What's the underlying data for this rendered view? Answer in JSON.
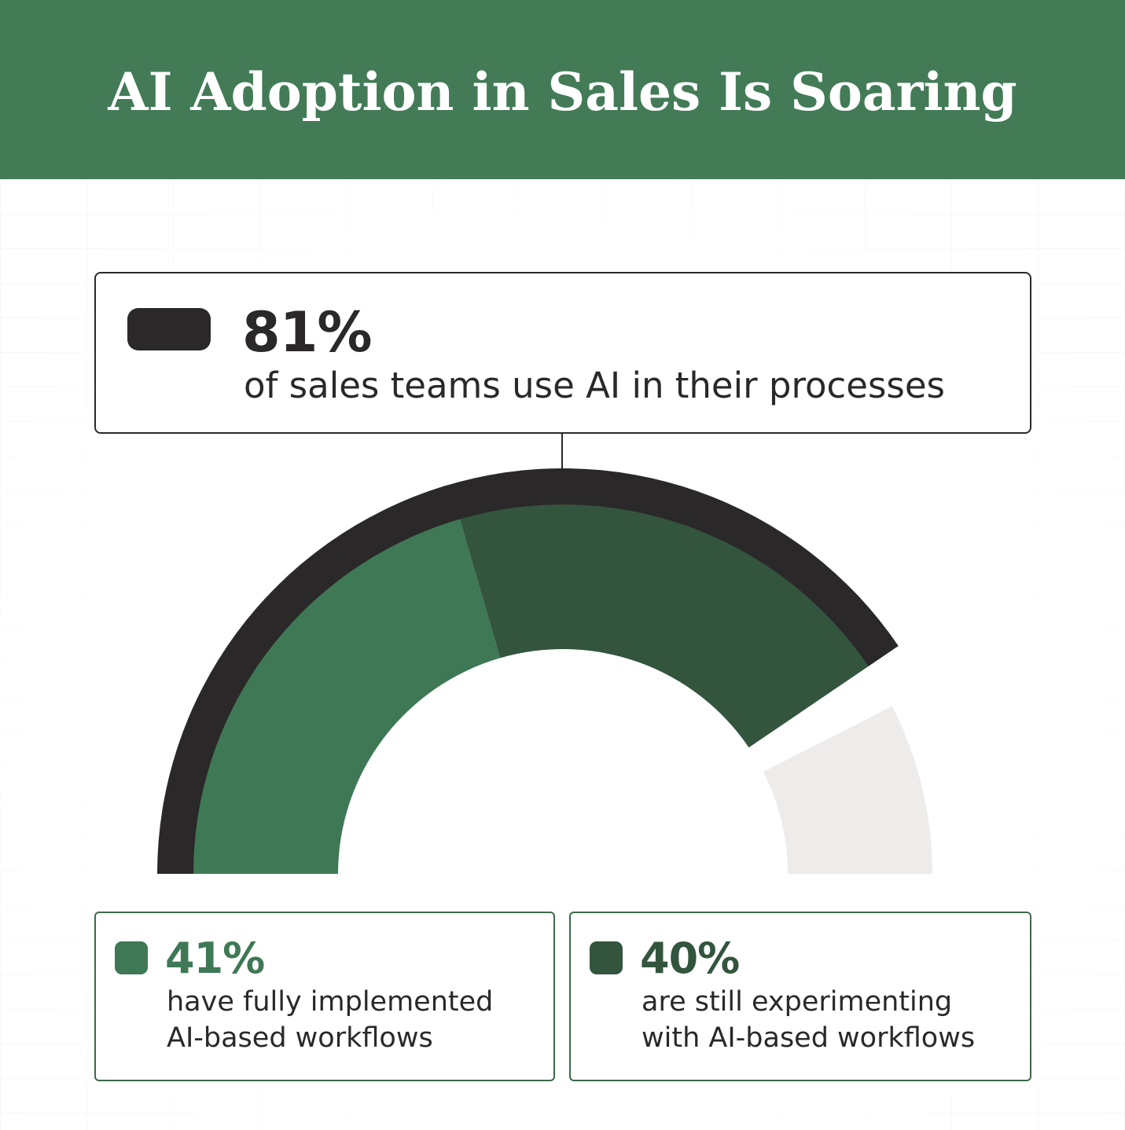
{
  "header": {
    "title": "AI Adoption in Sales Is Soaring"
  },
  "colors": {
    "header_bg": "#437b57",
    "total": "#2b2829",
    "fully_implemented": "#3f7855",
    "experimenting": "#33553e",
    "remainder": "#eeebeb"
  },
  "chart_data": {
    "type": "gauge",
    "total": {
      "value": 81,
      "label": "81%",
      "description": "of sales teams use AI in their processes",
      "color": "#2b2829"
    },
    "segments": [
      {
        "value": 41,
        "label": "41%",
        "description_line1": "have fully implemented",
        "description_line2": "AI-based workflows",
        "color": "#3f7855"
      },
      {
        "value": 40,
        "label": "40%",
        "description_line1": "are still experimenting",
        "description_line2": "with AI-based workflows",
        "color": "#33553e"
      }
    ],
    "remainder": {
      "value": 19,
      "color": "#eeebeb"
    },
    "scale": [
      0,
      100
    ]
  }
}
